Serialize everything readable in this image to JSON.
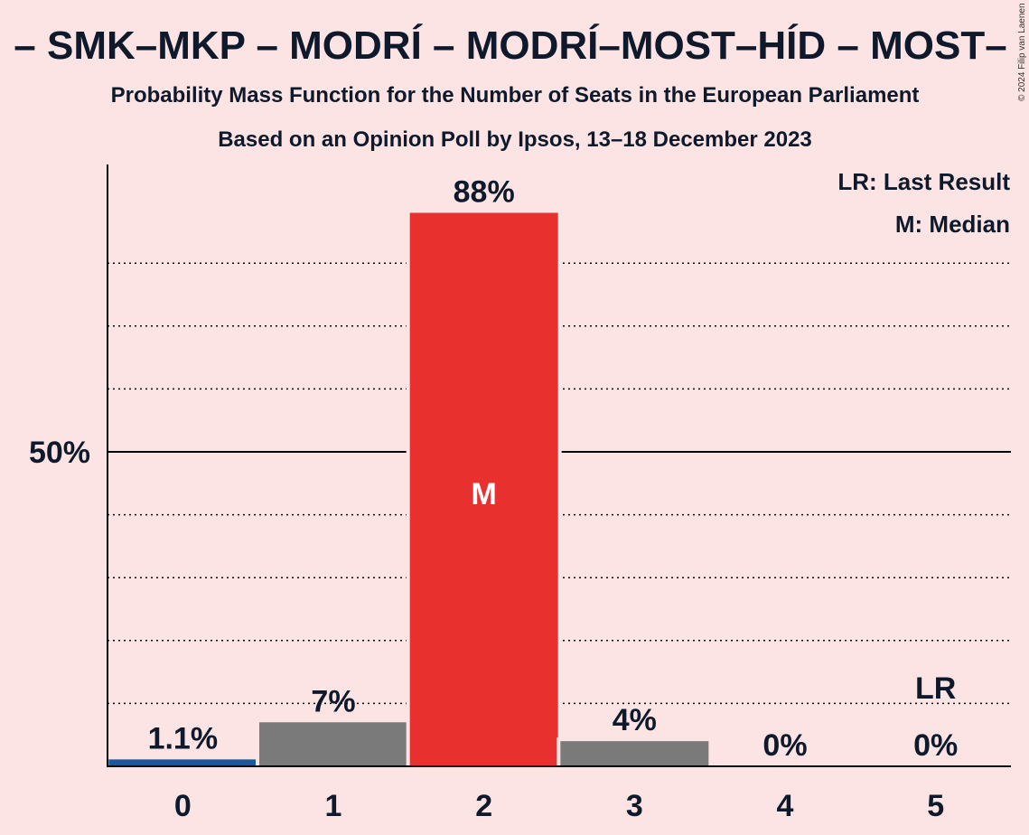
{
  "title": "– SMK–MKP – MODRÍ – MODRÍ–MOST–HÍD – MOST–",
  "subtitle1": "Probability Mass Function for the Number of Seats in the European Parliament",
  "subtitle2": "Based on an Opinion Poll by Ipsos, 13–18 December 2023",
  "legend": {
    "lr": "LR: Last Result",
    "m": "M: Median"
  },
  "copyright": "© 2024 Filip van Laenen",
  "chart_data": {
    "type": "bar",
    "categories": [
      "0",
      "1",
      "2",
      "3",
      "4",
      "5"
    ],
    "values": [
      1.1,
      7,
      88,
      4,
      0,
      0
    ],
    "value_labels": [
      "1.1%",
      "7%",
      "88%",
      "4%",
      "0%",
      "0%"
    ],
    "bar_colors": [
      "#1a5a9a",
      "#7a7a7a",
      "#e8302e",
      "#7a7a7a",
      "#7a7a7a",
      "#7a7a7a"
    ],
    "median_index": 2,
    "median_marker": "M",
    "last_result_index": 5,
    "last_result_marker": "LR",
    "ylim": [
      0,
      96
    ],
    "y_tick_label": "50%",
    "y_tick_value": 50,
    "gridlines": [
      10,
      20,
      30,
      40,
      60,
      70,
      80
    ],
    "grid": true
  }
}
